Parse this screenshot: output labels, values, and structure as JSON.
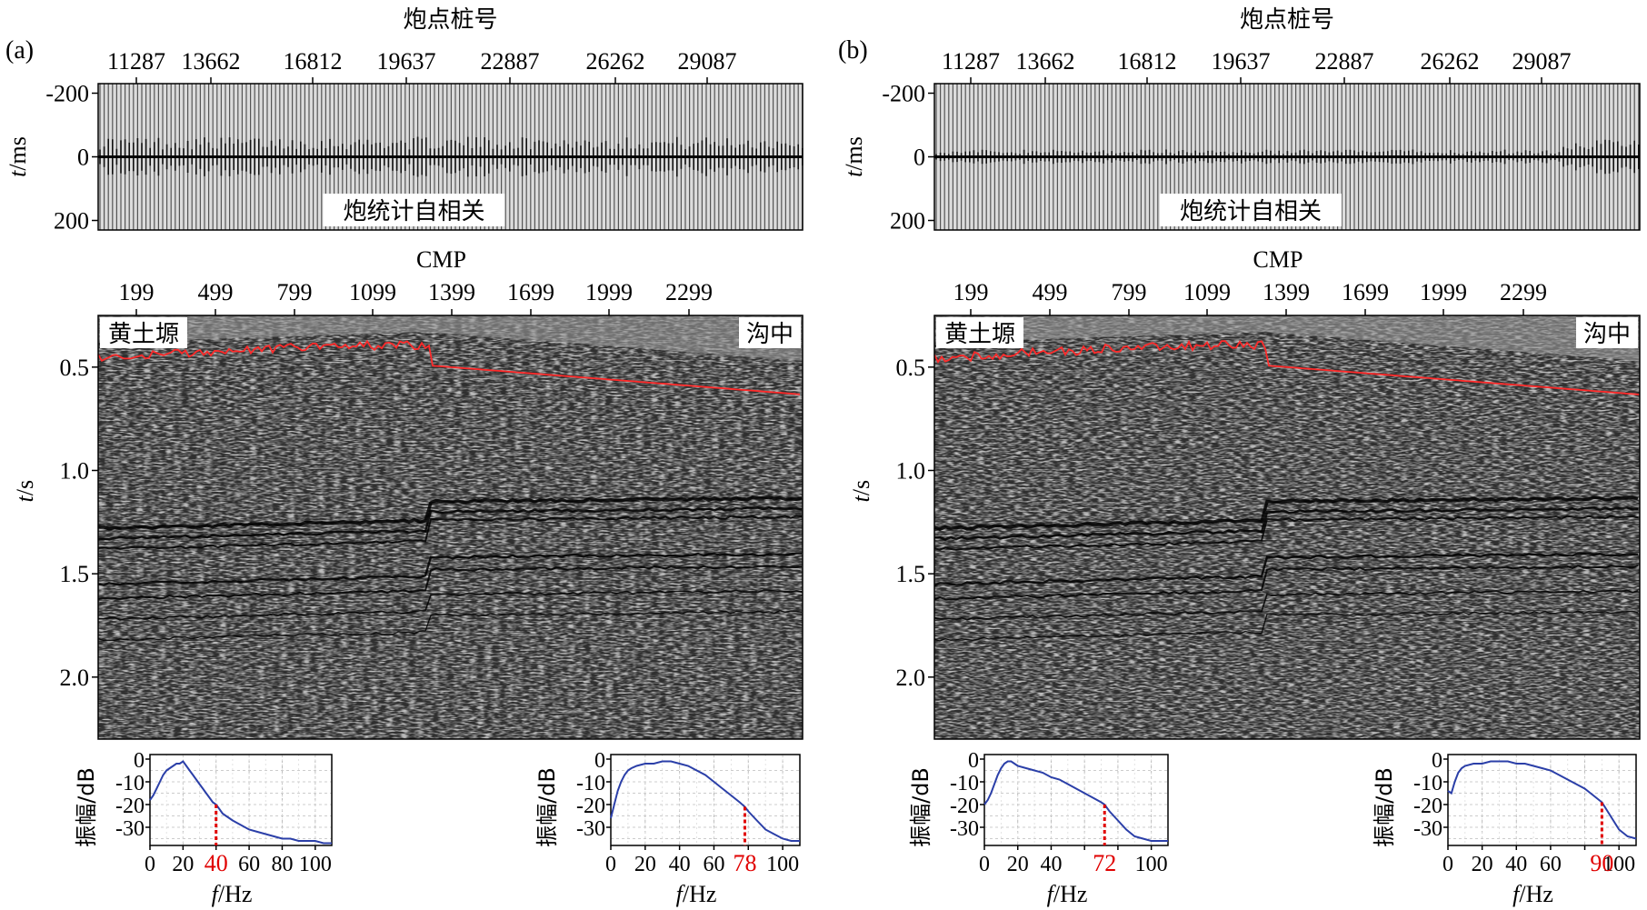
{
  "chart_data": [
    {
      "panel": "(a)",
      "autocorr": {
        "type": "heatmap",
        "top_label": "炮点桩号",
        "x_ticks": [
          "11287",
          "13662",
          "16812",
          "19637",
          "22887",
          "26262",
          "29087"
        ],
        "y_label_var": "t",
        "y_label_unit": "/ms",
        "y_ticks": [
          "-200",
          "0",
          "200"
        ],
        "y_values": [
          -200,
          0,
          200
        ],
        "ylim": [
          -230,
          230
        ],
        "annotation": "炮统计自相关"
      },
      "section": {
        "type": "heatmap",
        "top_label": "CMP",
        "x_ticks": [
          "199",
          "499",
          "799",
          "1099",
          "1399",
          "1699",
          "1999",
          "2299"
        ],
        "y_label_var": "t",
        "y_label_unit": "/s",
        "y_ticks": [
          "0.5",
          "1.0",
          "1.5",
          "2.0"
        ],
        "y_values": [
          0.5,
          1.0,
          1.5,
          2.0
        ],
        "ylim": [
          0.25,
          2.3
        ],
        "left_label": "黄土塬",
        "right_label": "沟中"
      },
      "spectra": [
        {
          "type": "line",
          "ylabel": "振幅/dB",
          "xlabel_var": "f",
          "xlabel_unit": "/Hz",
          "x_ticks": [
            "0",
            "20",
            "",
            "60",
            "80",
            "100"
          ],
          "x_tick_values": [
            0,
            20,
            40,
            60,
            80,
            100
          ],
          "y_ticks": [
            "0",
            "-10",
            "-20",
            "-30"
          ],
          "xlim": [
            0,
            110
          ],
          "ylim": [
            -38,
            2
          ],
          "marker_label": "40",
          "marker_value": 40,
          "x": [
            0,
            2,
            4,
            6,
            8,
            10,
            12,
            14,
            16,
            18,
            20,
            22,
            24,
            26,
            28,
            30,
            32,
            34,
            36,
            38,
            40,
            42,
            44,
            46,
            48,
            50,
            55,
            60,
            65,
            70,
            75,
            80,
            85,
            90,
            95,
            100,
            105,
            110
          ],
          "y": [
            -18,
            -16,
            -13,
            -10,
            -7,
            -5,
            -4,
            -3,
            -2,
            -2,
            -1,
            -3,
            -5,
            -7,
            -9,
            -11,
            -13,
            -15,
            -17,
            -19,
            -20,
            -22,
            -24,
            -25,
            -26,
            -27,
            -29,
            -31,
            -32,
            -33,
            -34,
            -35,
            -35,
            -36,
            -36,
            -36,
            -37,
            -37
          ]
        },
        {
          "type": "line",
          "ylabel": "振幅/dB",
          "xlabel_var": "f",
          "xlabel_unit": "/Hz",
          "x_ticks": [
            "0",
            "20",
            "40",
            "60",
            "",
            "100"
          ],
          "x_tick_values": [
            0,
            20,
            40,
            60,
            80,
            100
          ],
          "y_ticks": [
            "0",
            "-10",
            "-20",
            "-30"
          ],
          "xlim": [
            0,
            110
          ],
          "ylim": [
            -38,
            2
          ],
          "marker_label": "78",
          "marker_value": 78,
          "x": [
            0,
            2,
            4,
            6,
            8,
            10,
            12,
            15,
            20,
            25,
            30,
            35,
            40,
            45,
            50,
            55,
            60,
            65,
            70,
            75,
            78,
            80,
            85,
            90,
            95,
            100,
            105,
            110
          ],
          "y": [
            -26,
            -20,
            -14,
            -10,
            -7,
            -5,
            -4,
            -3,
            -2,
            -2,
            -1,
            -1,
            -2,
            -3,
            -5,
            -7,
            -10,
            -13,
            -16,
            -19,
            -21,
            -23,
            -27,
            -31,
            -33,
            -35,
            -36,
            -36
          ]
        }
      ]
    },
    {
      "panel": "(b)",
      "autocorr": {
        "type": "heatmap",
        "top_label": "炮点桩号",
        "x_ticks": [
          "11287",
          "13662",
          "16812",
          "19637",
          "22887",
          "26262",
          "29087"
        ],
        "y_label_var": "t",
        "y_label_unit": "/ms",
        "y_ticks": [
          "-200",
          "0",
          "200"
        ],
        "y_values": [
          -200,
          0,
          200
        ],
        "ylim": [
          -230,
          230
        ],
        "annotation": "炮统计自相关"
      },
      "section": {
        "type": "heatmap",
        "top_label": "CMP",
        "x_ticks": [
          "199",
          "499",
          "799",
          "1099",
          "1399",
          "1699",
          "1999",
          "2299"
        ],
        "y_label_var": "t",
        "y_label_unit": "/s",
        "y_ticks": [
          "0.5",
          "1.0",
          "1.5",
          "2.0"
        ],
        "y_values": [
          0.5,
          1.0,
          1.5,
          2.0
        ],
        "ylim": [
          0.25,
          2.3
        ],
        "left_label": "黄土塬",
        "right_label": "沟中"
      },
      "spectra": [
        {
          "type": "line",
          "ylabel": "振幅/dB",
          "xlabel_var": "f",
          "xlabel_unit": "/Hz",
          "x_ticks": [
            "0",
            "20",
            "40",
            "",
            "",
            "100"
          ],
          "x_tick_values": [
            0,
            20,
            40,
            60,
            80,
            100
          ],
          "y_ticks": [
            "0",
            "-10",
            "-20",
            "-30"
          ],
          "xlim": [
            0,
            110
          ],
          "ylim": [
            -38,
            2
          ],
          "marker_label": "72",
          "marker_value": 72,
          "x": [
            0,
            2,
            4,
            6,
            8,
            10,
            12,
            14,
            16,
            18,
            20,
            25,
            30,
            35,
            40,
            45,
            50,
            55,
            60,
            65,
            70,
            72,
            75,
            80,
            85,
            90,
            95,
            100,
            105,
            110
          ],
          "y": [
            -20,
            -18,
            -15,
            -11,
            -7,
            -4,
            -2,
            -1,
            -1,
            -2,
            -3,
            -4,
            -5,
            -6,
            -8,
            -9,
            -11,
            -13,
            -15,
            -17,
            -19,
            -20,
            -23,
            -27,
            -31,
            -34,
            -35,
            -36,
            -36,
            -36
          ]
        },
        {
          "type": "line",
          "ylabel": "振幅/dB",
          "xlabel_var": "f",
          "xlabel_unit": "/Hz",
          "x_ticks": [
            "0",
            "20",
            "40",
            "60",
            "",
            "100"
          ],
          "x_tick_values": [
            0,
            20,
            40,
            60,
            80,
            100
          ],
          "y_ticks": [
            "0",
            "-10",
            "-20",
            "-30"
          ],
          "xlim": [
            0,
            110
          ],
          "ylim": [
            -38,
            2
          ],
          "marker_label": "90",
          "marker_value": 90,
          "x": [
            0,
            2,
            4,
            6,
            8,
            10,
            15,
            20,
            25,
            30,
            35,
            40,
            45,
            50,
            55,
            60,
            65,
            70,
            75,
            80,
            85,
            90,
            95,
            100,
            105,
            110
          ],
          "y": [
            -14,
            -15,
            -10,
            -6,
            -4,
            -3,
            -2,
            -2,
            -1,
            -1,
            -1,
            -2,
            -2,
            -3,
            -4,
            -5,
            -7,
            -9,
            -11,
            -13,
            -16,
            -19,
            -25,
            -31,
            -34,
            -35
          ]
        }
      ]
    }
  ]
}
